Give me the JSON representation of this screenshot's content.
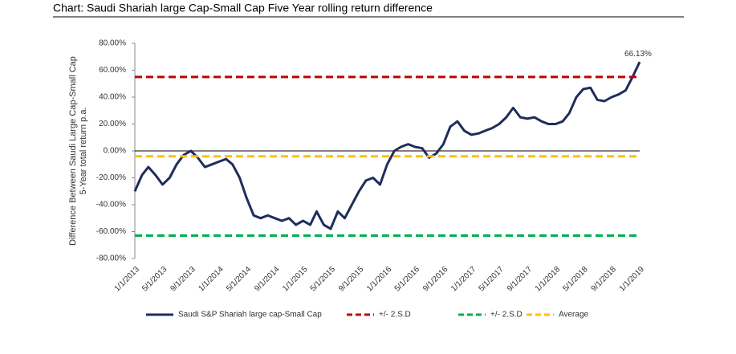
{
  "chart_data": {
    "type": "line",
    "title": "Chart: Saudi Shariah large Cap-Small Cap Five Year rolling return difference",
    "y_label": [
      "Difference Between  Saudi Large Cap-Small Cap",
      "5-Year total return p.a."
    ],
    "x": [
      "2013-01-01",
      "2013-02-01",
      "2013-03-01",
      "2013-04-01",
      "2013-05-01",
      "2013-06-01",
      "2013-07-01",
      "2013-08-01",
      "2013-09-01",
      "2013-10-01",
      "2013-11-01",
      "2013-12-01",
      "2014-01-01",
      "2014-02-01",
      "2014-03-01",
      "2014-04-01",
      "2014-05-01",
      "2014-06-01",
      "2014-07-01",
      "2014-08-01",
      "2014-09-01",
      "2014-10-01",
      "2014-11-01",
      "2014-12-01",
      "2015-01-01",
      "2015-02-01",
      "2015-03-01",
      "2015-04-01",
      "2015-05-01",
      "2015-06-01",
      "2015-07-01",
      "2015-08-01",
      "2015-09-01",
      "2015-10-01",
      "2015-11-01",
      "2015-12-01",
      "2016-01-01",
      "2016-02-01",
      "2016-03-01",
      "2016-04-01",
      "2016-05-01",
      "2016-06-01",
      "2016-07-01",
      "2016-08-01",
      "2016-09-01",
      "2016-10-01",
      "2016-11-01",
      "2016-12-01",
      "2017-01-01",
      "2017-02-01",
      "2017-03-01",
      "2017-04-01",
      "2017-05-01",
      "2017-06-01",
      "2017-07-01",
      "2017-08-01",
      "2017-09-01",
      "2017-10-01",
      "2017-11-01",
      "2017-12-01",
      "2018-01-01",
      "2018-02-01",
      "2018-03-01",
      "2018-04-01",
      "2018-05-01",
      "2018-06-01",
      "2018-07-01",
      "2018-08-01",
      "2018-09-01",
      "2018-10-01",
      "2018-11-01",
      "2018-12-01",
      "2019-01-01"
    ],
    "series": [
      {
        "name": "Saudi S&P Shariah large cap-Small Cap",
        "color": "#1f2d5c",
        "values": [
          -30,
          -18,
          -12,
          -18,
          -25,
          -20,
          -10,
          -3,
          0,
          -5,
          -12,
          -10,
          -8,
          -6,
          -10,
          -20,
          -35,
          -48,
          -50,
          -48,
          -50,
          -52,
          -50,
          -55,
          -52,
          -55,
          -45,
          -55,
          -58,
          -45,
          -50,
          -40,
          -30,
          -22,
          -20,
          -25,
          -10,
          0,
          3,
          5,
          3,
          2,
          -5,
          -2,
          5,
          18,
          22,
          15,
          12,
          13,
          15,
          17,
          20,
          25,
          32,
          25,
          24,
          25,
          22,
          20,
          20,
          22,
          28,
          40,
          46,
          47,
          38,
          37,
          40,
          42,
          45,
          55,
          66.13
        ]
      }
    ],
    "reference_lines": [
      {
        "name": "+/- 2.S.D",
        "value": 55,
        "color": "#c00000"
      },
      {
        "name": "+/- 2.S.D",
        "value": -63,
        "color": "#00b050"
      },
      {
        "name": "Average",
        "value": -4,
        "color": "#ffc000"
      }
    ],
    "annotation": {
      "text": "66.13%",
      "value": 66.13
    },
    "ylim": [
      -80,
      80
    ],
    "yticks": [
      {
        "value": -80,
        "label": "-80.00%"
      },
      {
        "value": -60,
        "label": "-60.00%"
      },
      {
        "value": -40,
        "label": "-40.00%"
      },
      {
        "value": -20,
        "label": "-20.00%"
      },
      {
        "value": 0,
        "label": "0.00%"
      },
      {
        "value": 20,
        "label": "20.00%"
      },
      {
        "value": 40,
        "label": "40.00%"
      },
      {
        "value": 60,
        "label": "60.00%"
      },
      {
        "value": 80,
        "label": "80.00%"
      }
    ],
    "xlim": [
      "2013-01-01",
      "2019-01-01"
    ],
    "xticks": [
      {
        "value": "2013-01-01",
        "label": "1/1/2013"
      },
      {
        "value": "2013-05-01",
        "label": "5/1/2013"
      },
      {
        "value": "2013-09-01",
        "label": "9/1/2013"
      },
      {
        "value": "2014-01-01",
        "label": "1/1/2014"
      },
      {
        "value": "2014-05-01",
        "label": "5/1/2014"
      },
      {
        "value": "2014-09-01",
        "label": "9/1/2014"
      },
      {
        "value": "2015-01-01",
        "label": "1/1/2015"
      },
      {
        "value": "2015-05-01",
        "label": "5/1/2015"
      },
      {
        "value": "2015-09-01",
        "label": "9/1/2015"
      },
      {
        "value": "2016-01-01",
        "label": "1/1/2016"
      },
      {
        "value": "2016-05-01",
        "label": "5/1/2016"
      },
      {
        "value": "2016-09-01",
        "label": "9/1/2016"
      },
      {
        "value": "2017-01-01",
        "label": "1/1/2017"
      },
      {
        "value": "2017-05-01",
        "label": "5/1/2017"
      },
      {
        "value": "2017-09-01",
        "label": "9/1/2017"
      },
      {
        "value": "2018-01-01",
        "label": "1/1/2018"
      },
      {
        "value": "2018-05-01",
        "label": "5/1/2018"
      },
      {
        "value": "2018-09-01",
        "label": "9/1/2018"
      },
      {
        "value": "2019-01-01",
        "label": "1/1/2019"
      }
    ],
    "legend": "bottom"
  }
}
